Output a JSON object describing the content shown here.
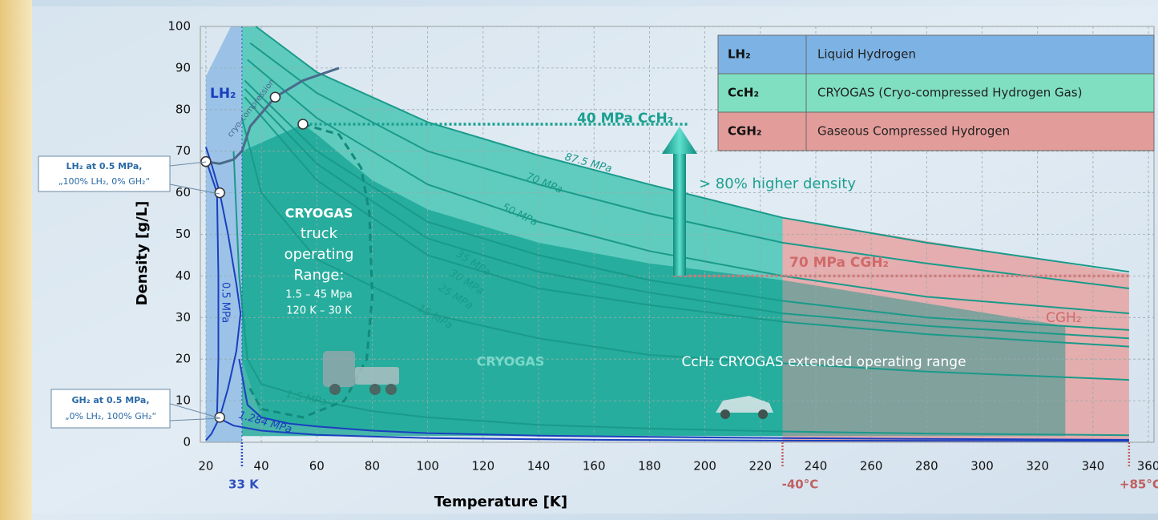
{
  "chart_data": {
    "type": "line",
    "xlabel": "Temperature [K]",
    "ylabel": "Density [g/L]",
    "xlim": [
      18,
      362
    ],
    "ylim": [
      0,
      100
    ],
    "xticks": [
      20,
      40,
      60,
      80,
      100,
      120,
      140,
      160,
      180,
      200,
      220,
      240,
      260,
      280,
      300,
      320,
      340,
      360
    ],
    "yticks": [
      0,
      10,
      20,
      30,
      40,
      50,
      60,
      70,
      80,
      90,
      100
    ],
    "grid": true,
    "series": [
      {
        "name": "87.5 MPa",
        "color": "#1a9a8a",
        "x": [
          38,
          60,
          100,
          140,
          180,
          228,
          280,
          353
        ],
        "values": [
          100,
          89,
          77,
          69,
          62,
          54,
          48,
          41
        ]
      },
      {
        "name": "70 MPa",
        "color": "#1a9a8a",
        "x": [
          36,
          60,
          100,
          140,
          180,
          228,
          280,
          353
        ],
        "values": [
          96,
          84,
          70,
          62,
          55,
          48,
          43,
          37
        ]
      },
      {
        "name": "50 MPa",
        "color": "#1a9a8a",
        "x": [
          35,
          60,
          100,
          140,
          180,
          228,
          280,
          353
        ],
        "values": [
          92,
          78,
          62,
          53,
          46,
          40,
          35,
          31
        ]
      },
      {
        "name": "35 MPa",
        "color": "#1a9a8a",
        "x": [
          34,
          60,
          100,
          140,
          180,
          228,
          280,
          353
        ],
        "values": [
          87,
          70,
          53,
          45,
          39,
          34,
          30,
          27
        ]
      },
      {
        "name": "30 MPa",
        "color": "#1a9a8a",
        "x": [
          34,
          60,
          100,
          140,
          180,
          228,
          280,
          353
        ],
        "values": [
          85,
          67,
          49,
          41,
          36,
          31,
          28,
          25
        ]
      },
      {
        "name": "25 MPa",
        "color": "#1a9a8a",
        "x": [
          34,
          60,
          100,
          140,
          180,
          228,
          280,
          353
        ],
        "values": [
          83,
          63,
          45,
          37,
          33,
          29,
          26,
          23
        ]
      },
      {
        "name": "15 MPa",
        "color": "#1a9a8a",
        "x": [
          33,
          40,
          60,
          100,
          140,
          180,
          228,
          280,
          353
        ],
        "values": [
          78,
          60,
          44,
          31,
          25,
          21,
          19,
          17,
          15
        ]
      },
      {
        "name": "1.5 MPa",
        "color": "#1a9a8a",
        "x": [
          30,
          32,
          35,
          40,
          50,
          60,
          80,
          100,
          140,
          180,
          228,
          280,
          353
        ],
        "values": [
          70,
          40,
          20,
          14,
          12,
          10,
          7.5,
          6,
          4.2,
          3.3,
          2.6,
          2.1,
          1.7
        ]
      },
      {
        "name": "1.284 MPa",
        "color": "#1a3fbf",
        "x": [
          32,
          35,
          40,
          50,
          60,
          80,
          100,
          140,
          180,
          228,
          280,
          353
        ],
        "values": [
          20,
          9,
          6,
          4.5,
          3.8,
          2.8,
          2.2,
          1.6,
          1.3,
          1,
          0.8,
          0.6
        ]
      },
      {
        "name": "0.5 MPa",
        "color": "#1a3fbf",
        "x": [
          20,
          24,
          24.5,
          24.5,
          24,
          30,
          40,
          60,
          100,
          160,
          228,
          353
        ],
        "values": [
          68,
          60,
          40,
          20,
          6,
          4,
          2.8,
          1.8,
          1,
          0.6,
          0.4,
          0.3
        ]
      },
      {
        "color": "#1a3fbf",
        "x": [
          20,
          22,
          25,
          28,
          31,
          32.5,
          31,
          28,
          25,
          22,
          20
        ],
        "values": [
          71,
          67,
          60,
          50,
          38,
          31,
          22,
          13,
          6,
          2,
          0.5
        ]
      },
      {
        "name": "cryo-compression",
        "color": "#4a6a8a",
        "x": [
          20,
          25,
          30,
          33,
          36,
          45,
          55,
          68
        ],
        "values": [
          67.5,
          67,
          68,
          70,
          76,
          83,
          87,
          90
        ]
      }
    ],
    "regions": [
      {
        "color": "#e79a98",
        "x": [
          228,
          353,
          353,
          228
        ],
        "values": [
          54,
          40.5,
          0,
          0
        ]
      },
      {
        "color": "#34c2ae",
        "x": [
          33,
          38,
          60,
          100,
          140,
          180,
          228,
          228,
          140,
          80,
          50,
          40,
          33
        ],
        "values": [
          100,
          100,
          89,
          77,
          69,
          62,
          54,
          1.5,
          1.7,
          2.8,
          4.5,
          6,
          20
        ]
      },
      {
        "color": "#13a391",
        "x": [
          33,
          55,
          60,
          80,
          100,
          140,
          180,
          228,
          228,
          33
        ],
        "values": [
          70,
          76.5,
          74,
          63,
          56,
          48,
          43,
          39,
          1.5,
          1.5
        ]
      },
      {
        "color": "#5f9e96",
        "x": [
          228,
          330,
          330,
          228
        ],
        "values": [
          39,
          28,
          1.5,
          1.5
        ]
      },
      {
        "color": "#86b5e3",
        "x": [
          20,
          20,
          29,
          33,
          33
        ],
        "values": [
          0,
          88,
          100,
          100,
          0
        ]
      }
    ],
    "truck_range": {
      "color": "#138a7c",
      "x": [
        55,
        68,
        76,
        79,
        80,
        78,
        70,
        55,
        40,
        35
      ],
      "values": [
        76.5,
        74,
        66,
        55,
        35,
        20,
        10,
        6,
        8,
        14
      ]
    },
    "reference_lines": [
      {
        "label": "40 MPa CcH₂",
        "value": 76.5,
        "x": [
          54,
          194
        ],
        "color": "#1aa090"
      },
      {
        "label": "70 MPa CGH₂",
        "value": 40,
        "x": [
          189,
          353
        ],
        "color": "#d07a7a"
      }
    ],
    "x_markers": [
      {
        "value": 33,
        "label": "33 K",
        "color": "#3050c0"
      },
      {
        "value": 228,
        "label": "-40°C",
        "color": "#c06060"
      },
      {
        "value": 353,
        "label": "+85°C",
        "color": "#c06060"
      }
    ],
    "markers": {
      "x": [
        20,
        25,
        25,
        45,
        55
      ],
      "values": [
        67.5,
        60,
        6,
        83,
        76.5
      ]
    },
    "key": [
      {
        "symbol": "LH₂",
        "text": "Liquid Hydrogen",
        "color": "#7cb2e4"
      },
      {
        "symbol": "CcH₂",
        "text": "CRYOGAS (Cryo-compressed Hydrogen Gas)",
        "color": "#7fdfc0"
      },
      {
        "symbol": "CGH₂",
        "text": "Gaseous Compressed Hydrogen",
        "color": "#e29c9a"
      }
    ],
    "annotations": {
      "lh2": "LH₂",
      "higher": "> 80% higher density",
      "cgh2": "CGH₂",
      "truck": [
        "CRYOGAS",
        "truck",
        "operating",
        "Range:",
        "1.5 – 45 Mpa",
        "120 K – 30 K"
      ],
      "cryogas": "CRYOGAS",
      "extended": "CcH₂ CRYOGAS extended operating range",
      "liquid_callout": [
        "LH₂ at 0.5 MPa,",
        "„100% LH₂, 0% GH₂“"
      ],
      "gas_callout": [
        "GH₂ at 0.5 MPa,",
        "„0% LH₂, 100% GH₂“"
      ]
    }
  }
}
